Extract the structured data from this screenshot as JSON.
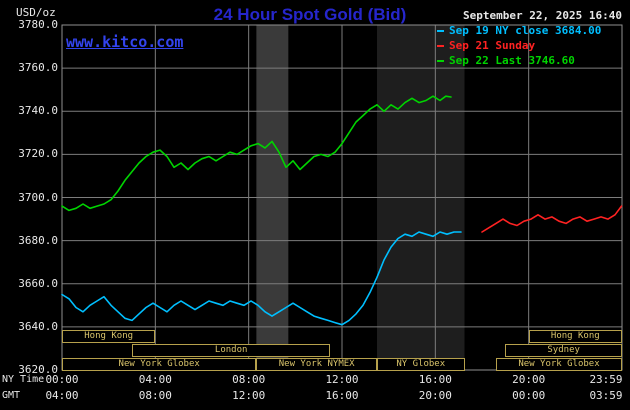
{
  "header": {
    "title": "24 Hour Spot Gold (Bid)",
    "datetime": "September 22, 2025 16:40",
    "site": "www.kitco.com"
  },
  "colors": {
    "background": "#000000",
    "grid": "#7d7d7d",
    "plot_border": "#909090",
    "title": "#2626cc",
    "link": "#3344ee",
    "axis_text": "#e8e8e8",
    "session_border": "#b6a14c",
    "session_text": "#d8c36a"
  },
  "legend": {
    "items": [
      {
        "label": "Sep 19 NY close 3684.00",
        "color": "#00bfff"
      },
      {
        "label": "Sep 21 Sunday",
        "color": "#ff2222"
      },
      {
        "label": "Sep 22 Last 3746.60",
        "color": "#00d400"
      }
    ]
  },
  "axes": {
    "y_label": "USD/oz",
    "ny_time_label": "NY Time",
    "gmt_label": "GMT",
    "y_ticks": [
      {
        "value": 3780,
        "label": "3780.0"
      },
      {
        "value": 3760,
        "label": "3760.0"
      },
      {
        "value": 3740,
        "label": "3740.0"
      },
      {
        "value": 3720,
        "label": "3720.0"
      },
      {
        "value": 3700,
        "label": "3700.0"
      },
      {
        "value": 3680,
        "label": "3680.0"
      },
      {
        "value": 3660,
        "label": "3660.0"
      },
      {
        "value": 3640,
        "label": "3640.0"
      },
      {
        "value": 3620,
        "label": "3620.0"
      }
    ],
    "x_ticks_ny": [
      {
        "t": 0,
        "label": "00:00"
      },
      {
        "t": 4,
        "label": "04:00"
      },
      {
        "t": 8,
        "label": "08:00"
      },
      {
        "t": 12,
        "label": "12:00"
      },
      {
        "t": 16,
        "label": "16:00"
      },
      {
        "t": 20,
        "label": "20:00"
      },
      {
        "t": 23.983,
        "label": "23:59"
      }
    ],
    "x_ticks_gmt": [
      {
        "t": 0,
        "label": "04:00"
      },
      {
        "t": 4,
        "label": "08:00"
      },
      {
        "t": 8,
        "label": "12:00"
      },
      {
        "t": 12,
        "label": "16:00"
      },
      {
        "t": 16,
        "label": "20:00"
      },
      {
        "t": 20,
        "label": "00:00"
      },
      {
        "t": 23.983,
        "label": "03:59"
      }
    ]
  },
  "sessions": {
    "boxes": [
      {
        "row": 1,
        "t0": 0,
        "t1": 4,
        "label": "Hong Kong"
      },
      {
        "row": 1,
        "t0": 20,
        "t1": 24,
        "label": "Hong Kong"
      },
      {
        "row": 2,
        "t0": 3,
        "t1": 11.5,
        "label": "London"
      },
      {
        "row": 2,
        "t0": 19,
        "t1": 24,
        "label": "Sydney"
      },
      {
        "row": 3,
        "t0": 0,
        "t1": 8.33,
        "label": "New York Globex"
      },
      {
        "row": 3,
        "t0": 8.33,
        "t1": 13.5,
        "label": "New York NYMEX"
      },
      {
        "row": 3,
        "t0": 13.5,
        "t1": 17.25,
        "label": "NY Globex"
      },
      {
        "row": 3,
        "t0": 18.6,
        "t1": 24,
        "label": "New York Globex"
      }
    ]
  },
  "chart_data": {
    "type": "line",
    "title": "24 Hour Spot Gold (Bid)",
    "ylabel": "USD/oz",
    "ylim": [
      3620,
      3780
    ],
    "xlim_hours": [
      0,
      24
    ],
    "grid": true,
    "y_grid": [
      3640,
      3660,
      3680,
      3700,
      3720,
      3740,
      3760
    ],
    "x_grid": [
      4,
      8,
      12,
      16,
      20
    ],
    "prev_close": 3684.0,
    "last_price": 3746.6,
    "bands": [
      {
        "t0": 8.33,
        "t1": 9.7,
        "color": "#3a3a3a"
      },
      {
        "t0": 13.5,
        "t1": 17.25,
        "color": "#1e1e1e"
      }
    ],
    "series": [
      {
        "name": "Sep 19 NY close 3684.00",
        "color": "#00bfff",
        "points": [
          [
            0,
            3655
          ],
          [
            0.3,
            3653
          ],
          [
            0.6,
            3649
          ],
          [
            0.9,
            3647
          ],
          [
            1.2,
            3650
          ],
          [
            1.5,
            3652
          ],
          [
            1.8,
            3654
          ],
          [
            2.1,
            3650
          ],
          [
            2.4,
            3647
          ],
          [
            2.7,
            3644
          ],
          [
            3,
            3643
          ],
          [
            3.3,
            3646
          ],
          [
            3.6,
            3649
          ],
          [
            3.9,
            3651
          ],
          [
            4.2,
            3649
          ],
          [
            4.5,
            3647
          ],
          [
            4.8,
            3650
          ],
          [
            5.1,
            3652
          ],
          [
            5.4,
            3650
          ],
          [
            5.7,
            3648
          ],
          [
            6,
            3650
          ],
          [
            6.3,
            3652
          ],
          [
            6.6,
            3651
          ],
          [
            6.9,
            3650
          ],
          [
            7.2,
            3652
          ],
          [
            7.5,
            3651
          ],
          [
            7.8,
            3650
          ],
          [
            8.1,
            3652
          ],
          [
            8.4,
            3650
          ],
          [
            8.7,
            3647
          ],
          [
            9,
            3645
          ],
          [
            9.3,
            3647
          ],
          [
            9.6,
            3649
          ],
          [
            9.9,
            3651
          ],
          [
            10.2,
            3649
          ],
          [
            10.5,
            3647
          ],
          [
            10.8,
            3645
          ],
          [
            11.1,
            3644
          ],
          [
            11.4,
            3643
          ],
          [
            11.7,
            3642
          ],
          [
            12,
            3641
          ],
          [
            12.3,
            3643
          ],
          [
            12.6,
            3646
          ],
          [
            12.9,
            3650
          ],
          [
            13.2,
            3656
          ],
          [
            13.5,
            3663
          ],
          [
            13.8,
            3671
          ],
          [
            14.1,
            3677
          ],
          [
            14.4,
            3681
          ],
          [
            14.7,
            3683
          ],
          [
            15,
            3682
          ],
          [
            15.3,
            3684
          ],
          [
            15.6,
            3683
          ],
          [
            15.9,
            3682
          ],
          [
            16.2,
            3684
          ],
          [
            16.5,
            3683
          ],
          [
            16.8,
            3684
          ],
          [
            17.1,
            3684
          ]
        ]
      },
      {
        "name": "Sep 21 Sunday",
        "color": "#ff2222",
        "points": [
          [
            18,
            3684
          ],
          [
            18.3,
            3686
          ],
          [
            18.6,
            3688
          ],
          [
            18.9,
            3690
          ],
          [
            19.2,
            3688
          ],
          [
            19.5,
            3687
          ],
          [
            19.8,
            3689
          ],
          [
            20.1,
            3690
          ],
          [
            20.4,
            3692
          ],
          [
            20.7,
            3690
          ],
          [
            21,
            3691
          ],
          [
            21.3,
            3689
          ],
          [
            21.6,
            3688
          ],
          [
            21.9,
            3690
          ],
          [
            22.2,
            3691
          ],
          [
            22.5,
            3689
          ],
          [
            22.8,
            3690
          ],
          [
            23.1,
            3691
          ],
          [
            23.4,
            3690
          ],
          [
            23.7,
            3692
          ],
          [
            23.98,
            3696
          ]
        ]
      },
      {
        "name": "Sep 22 Last 3746.60",
        "color": "#00d400",
        "points": [
          [
            0,
            3696
          ],
          [
            0.3,
            3694
          ],
          [
            0.6,
            3695
          ],
          [
            0.9,
            3697
          ],
          [
            1.2,
            3695
          ],
          [
            1.5,
            3696
          ],
          [
            1.8,
            3697
          ],
          [
            2.1,
            3699
          ],
          [
            2.4,
            3703
          ],
          [
            2.7,
            3708
          ],
          [
            3,
            3712
          ],
          [
            3.3,
            3716
          ],
          [
            3.6,
            3719
          ],
          [
            3.9,
            3721
          ],
          [
            4.2,
            3722
          ],
          [
            4.5,
            3719
          ],
          [
            4.8,
            3714
          ],
          [
            5.1,
            3716
          ],
          [
            5.4,
            3713
          ],
          [
            5.7,
            3716
          ],
          [
            6,
            3718
          ],
          [
            6.3,
            3719
          ],
          [
            6.6,
            3717
          ],
          [
            6.9,
            3719
          ],
          [
            7.2,
            3721
          ],
          [
            7.5,
            3720
          ],
          [
            7.8,
            3722
          ],
          [
            8.1,
            3724
          ],
          [
            8.4,
            3725
          ],
          [
            8.7,
            3723
          ],
          [
            9,
            3726
          ],
          [
            9.3,
            3721
          ],
          [
            9.6,
            3714
          ],
          [
            9.9,
            3717
          ],
          [
            10.2,
            3713
          ],
          [
            10.5,
            3716
          ],
          [
            10.8,
            3719
          ],
          [
            11.1,
            3720
          ],
          [
            11.4,
            3719
          ],
          [
            11.7,
            3721
          ],
          [
            12,
            3725
          ],
          [
            12.3,
            3730
          ],
          [
            12.6,
            3735
          ],
          [
            12.9,
            3738
          ],
          [
            13.2,
            3741
          ],
          [
            13.5,
            3743
          ],
          [
            13.8,
            3740
          ],
          [
            14.1,
            3743
          ],
          [
            14.4,
            3741
          ],
          [
            14.7,
            3744
          ],
          [
            15,
            3746
          ],
          [
            15.3,
            3744
          ],
          [
            15.6,
            3745
          ],
          [
            15.9,
            3747
          ],
          [
            16.2,
            3745
          ],
          [
            16.45,
            3747
          ],
          [
            16.67,
            3746.6
          ]
        ]
      }
    ]
  }
}
